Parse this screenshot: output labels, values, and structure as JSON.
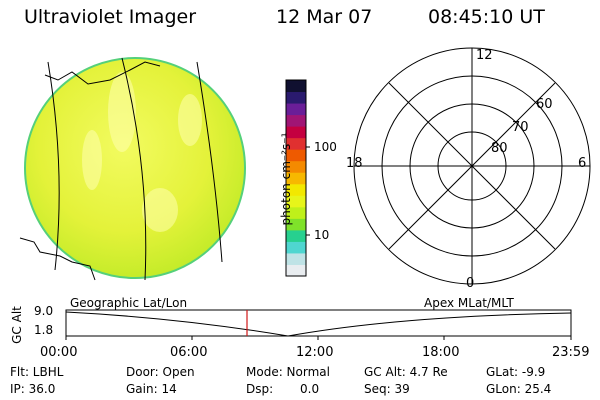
{
  "header": {
    "instrument": "Ultraviolet Imager",
    "date": "12 Mar 07",
    "time": "08:45:10 UT"
  },
  "colorbar": {
    "unit_label": "photon cm⁻²s⁻¹",
    "ticks": [
      "100",
      "10"
    ],
    "colors": [
      "#e9edf0",
      "#bfe3e6",
      "#4fd6d0",
      "#27d08f",
      "#7fe22a",
      "#bff01a",
      "#e7f51a",
      "#f2e800",
      "#f7b800",
      "#f48a00",
      "#ee5a00",
      "#e03030",
      "#c40040",
      "#a01575",
      "#6a1e98",
      "#2a1a6e",
      "#101030"
    ]
  },
  "polar_plot": {
    "clock_labels": [
      "12",
      "18",
      "6",
      "0"
    ],
    "lat_labels": [
      "60",
      "70",
      "80"
    ]
  },
  "timeline": {
    "left_label": "Geographic Lat/Lon",
    "right_label": "Apex MLat/MLT",
    "axis_title": "GC Alt",
    "y_ticks": [
      "9.0",
      "1.8"
    ],
    "x_ticks": [
      "00:00",
      "06:00",
      "12:00",
      "18:00",
      "23:59"
    ],
    "current_marker_color": "#d01818"
  },
  "status": {
    "flt": "Flt: LBHL",
    "ip": "IP: 36.0",
    "door": "Door: Open",
    "gain": "Gain: 14",
    "mode": "Mode: Normal",
    "dsp_label": "Dsp:",
    "dsp_value": "0.0",
    "gc_alt": "GC Alt: 4.7 Re",
    "seq": "Seq: 39",
    "glat": "GLat:  -9.9",
    "glon": "GLon:  25.4"
  }
}
